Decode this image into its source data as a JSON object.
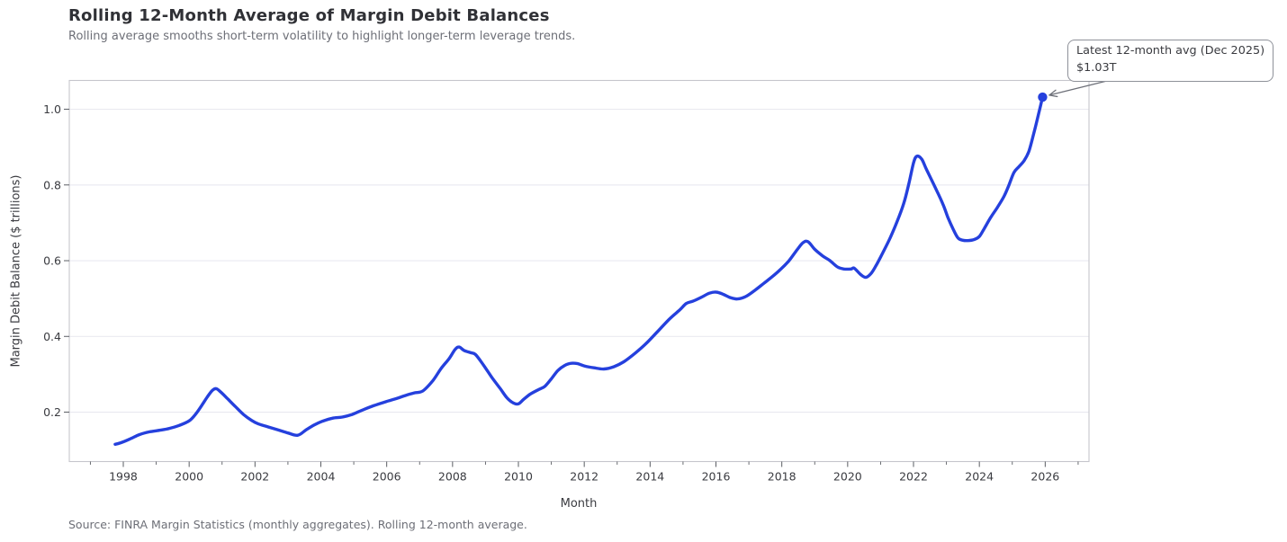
{
  "header": {
    "title": "Rolling 12-Month Average of Margin Debit Balances",
    "subtitle": "Rolling average smooths short-term volatility to highlight longer-term leverage trends."
  },
  "axes": {
    "x_label": "Month",
    "y_label": "Margin Debit Balance ($ trillions)"
  },
  "source_note": "Source: FINRA Margin Statistics (monthly aggregates). Rolling 12-month average.",
  "annotation": {
    "line1": "Latest 12-month avg (Dec 2025)",
    "line2": "$1.03T"
  },
  "colors": {
    "line": "#2540dd",
    "grid": "#e9e9f0",
    "spine": "#c6c6cc",
    "tick": "#5a5d63",
    "tick_label": "#3a3b40",
    "arrow": "#6d7078",
    "background": "#ffffff"
  },
  "chart_data": {
    "type": "line",
    "title": "Rolling 12-Month Average of Margin Debit Balances",
    "subtitle": "Rolling average smooths short-term volatility to highlight longer-term leverage trends.",
    "xlabel": "Month",
    "ylabel": "Margin Debit Balance ($ trillions)",
    "grid": "horizontal-only",
    "legend": false,
    "xlim": [
      1996.36,
      2027.33
    ],
    "ylim": [
      0.0695,
      1.076
    ],
    "x_ticks": [
      1998,
      2000,
      2002,
      2004,
      2006,
      2008,
      2010,
      2012,
      2014,
      2016,
      2018,
      2020,
      2022,
      2024,
      2026
    ],
    "x_minor_ticks": [
      1997,
      1999,
      2001,
      2003,
      2005,
      2007,
      2009,
      2011,
      2013,
      2015,
      2017,
      2019,
      2021,
      2023,
      2025,
      2027
    ],
    "y_ticks": [
      0.2,
      0.4,
      0.6,
      0.8,
      1.0
    ],
    "series": [
      {
        "name": "Rolling 12-month average of margin debit balance ($T)",
        "points": [
          [
            1997.75,
            0.115
          ],
          [
            1997.92,
            0.119
          ],
          [
            1998.2,
            0.129
          ],
          [
            1998.5,
            0.141
          ],
          [
            1998.8,
            0.148
          ],
          [
            1999.1,
            0.152
          ],
          [
            1999.4,
            0.157
          ],
          [
            1999.7,
            0.165
          ],
          [
            2000.0,
            0.177
          ],
          [
            2000.2,
            0.195
          ],
          [
            2000.4,
            0.22
          ],
          [
            2000.55,
            0.24
          ],
          [
            2000.7,
            0.257
          ],
          [
            2000.82,
            0.262
          ],
          [
            2000.95,
            0.254
          ],
          [
            2001.15,
            0.237
          ],
          [
            2001.4,
            0.215
          ],
          [
            2001.65,
            0.194
          ],
          [
            2001.9,
            0.178
          ],
          [
            2002.1,
            0.169
          ],
          [
            2002.4,
            0.161
          ],
          [
            2002.7,
            0.153
          ],
          [
            2003.0,
            0.145
          ],
          [
            2003.3,
            0.139
          ],
          [
            2003.55,
            0.153
          ],
          [
            2003.8,
            0.166
          ],
          [
            2004.05,
            0.176
          ],
          [
            2004.35,
            0.184
          ],
          [
            2004.65,
            0.187
          ],
          [
            2004.95,
            0.194
          ],
          [
            2005.25,
            0.205
          ],
          [
            2005.6,
            0.217
          ],
          [
            2005.95,
            0.227
          ],
          [
            2006.3,
            0.236
          ],
          [
            2006.6,
            0.245
          ],
          [
            2006.85,
            0.251
          ],
          [
            2007.1,
            0.256
          ],
          [
            2007.4,
            0.283
          ],
          [
            2007.65,
            0.315
          ],
          [
            2007.9,
            0.342
          ],
          [
            2008.08,
            0.366
          ],
          [
            2008.2,
            0.372
          ],
          [
            2008.35,
            0.363
          ],
          [
            2008.55,
            0.357
          ],
          [
            2008.7,
            0.352
          ],
          [
            2008.95,
            0.323
          ],
          [
            2009.2,
            0.291
          ],
          [
            2009.45,
            0.262
          ],
          [
            2009.65,
            0.238
          ],
          [
            2009.85,
            0.224
          ],
          [
            2010.0,
            0.222
          ],
          [
            2010.15,
            0.233
          ],
          [
            2010.35,
            0.247
          ],
          [
            2010.6,
            0.259
          ],
          [
            2010.8,
            0.268
          ],
          [
            2011.0,
            0.288
          ],
          [
            2011.2,
            0.31
          ],
          [
            2011.4,
            0.323
          ],
          [
            2011.6,
            0.329
          ],
          [
            2011.8,
            0.328
          ],
          [
            2012.0,
            0.322
          ],
          [
            2012.3,
            0.317
          ],
          [
            2012.6,
            0.314
          ],
          [
            2012.9,
            0.32
          ],
          [
            2013.2,
            0.333
          ],
          [
            2013.55,
            0.356
          ],
          [
            2013.9,
            0.383
          ],
          [
            2014.25,
            0.415
          ],
          [
            2014.6,
            0.447
          ],
          [
            2014.9,
            0.47
          ],
          [
            2015.1,
            0.487
          ],
          [
            2015.3,
            0.493
          ],
          [
            2015.55,
            0.503
          ],
          [
            2015.8,
            0.514
          ],
          [
            2016.0,
            0.517
          ],
          [
            2016.2,
            0.512
          ],
          [
            2016.45,
            0.502
          ],
          [
            2016.65,
            0.499
          ],
          [
            2016.9,
            0.505
          ],
          [
            2017.2,
            0.523
          ],
          [
            2017.45,
            0.54
          ],
          [
            2017.7,
            0.557
          ],
          [
            2017.95,
            0.576
          ],
          [
            2018.2,
            0.598
          ],
          [
            2018.45,
            0.627
          ],
          [
            2018.65,
            0.648
          ],
          [
            2018.8,
            0.65
          ],
          [
            2019.0,
            0.63
          ],
          [
            2019.25,
            0.612
          ],
          [
            2019.45,
            0.601
          ],
          [
            2019.7,
            0.583
          ],
          [
            2019.9,
            0.578
          ],
          [
            2020.1,
            0.578
          ],
          [
            2020.2,
            0.58
          ],
          [
            2020.4,
            0.563
          ],
          [
            2020.55,
            0.556
          ],
          [
            2020.7,
            0.565
          ],
          [
            2020.85,
            0.585
          ],
          [
            2021.05,
            0.618
          ],
          [
            2021.3,
            0.662
          ],
          [
            2021.5,
            0.703
          ],
          [
            2021.7,
            0.75
          ],
          [
            2021.85,
            0.8
          ],
          [
            2022.0,
            0.858
          ],
          [
            2022.1,
            0.876
          ],
          [
            2022.25,
            0.868
          ],
          [
            2022.4,
            0.84
          ],
          [
            2022.7,
            0.786
          ],
          [
            2022.9,
            0.748
          ],
          [
            2023.05,
            0.713
          ],
          [
            2023.2,
            0.684
          ],
          [
            2023.35,
            0.66
          ],
          [
            2023.5,
            0.654
          ],
          [
            2023.65,
            0.653
          ],
          [
            2023.85,
            0.656
          ],
          [
            2024.0,
            0.664
          ],
          [
            2024.15,
            0.685
          ],
          [
            2024.35,
            0.715
          ],
          [
            2024.55,
            0.741
          ],
          [
            2024.75,
            0.77
          ],
          [
            2024.9,
            0.8
          ],
          [
            2025.05,
            0.833
          ],
          [
            2025.2,
            0.848
          ],
          [
            2025.35,
            0.863
          ],
          [
            2025.5,
            0.888
          ],
          [
            2025.65,
            0.935
          ],
          [
            2025.8,
            0.988
          ],
          [
            2025.92,
            1.032
          ]
        ]
      }
    ],
    "last_point": {
      "x": 2025.92,
      "y": 1.032,
      "label": "$1.03T",
      "label_date": "Dec 2025"
    }
  }
}
